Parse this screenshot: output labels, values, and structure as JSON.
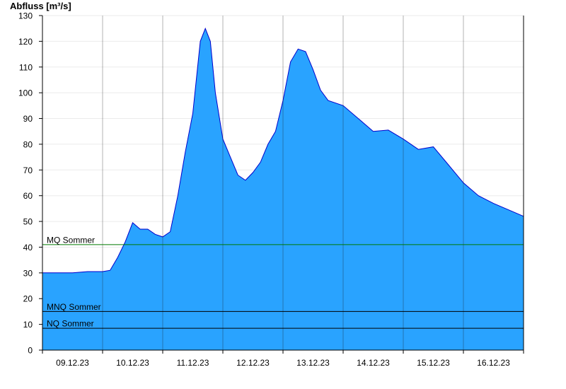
{
  "chart_data": {
    "type": "area",
    "title": "",
    "ylabel": "Abfluss [m³/s]",
    "xlabel": "",
    "ylim": [
      0,
      130
    ],
    "y_ticks": [
      0,
      10,
      20,
      30,
      40,
      50,
      60,
      70,
      80,
      90,
      100,
      110,
      120,
      130
    ],
    "x_range_days": [
      "09.12.23",
      "17.12.23"
    ],
    "x_tick_labels": [
      "09.12.23",
      "10.12.23",
      "11.12.23",
      "12.12.23",
      "13.12.23",
      "14.12.23",
      "15.12.23",
      "16.12.23"
    ],
    "grid": true,
    "colors": {
      "fill": "#29a3ff",
      "line": "#0000cc",
      "mq_line": "#007a00",
      "ref_line": "#000000"
    },
    "series": [
      {
        "name": "",
        "x": [
          "09.12.23 00:00",
          "09.12.23 06:00",
          "09.12.23 12:00",
          "09.12.23 18:00",
          "10.12.23 00:00",
          "10.12.23 03:00",
          "10.12.23 06:00",
          "10.12.23 09:00",
          "10.12.23 12:00",
          "10.12.23 15:00",
          "10.12.23 18:00",
          "10.12.23 21:00",
          "11.12.23 00:00",
          "11.12.23 03:00",
          "11.12.23 06:00",
          "11.12.23 09:00",
          "11.12.23 12:00",
          "11.12.23 15:00",
          "11.12.23 17:00",
          "11.12.23 19:00",
          "11.12.23 21:00",
          "12.12.23 00:00",
          "12.12.23 03:00",
          "12.12.23 06:00",
          "12.12.23 09:00",
          "12.12.23 12:00",
          "12.12.23 15:00",
          "12.12.23 18:00",
          "12.12.23 21:00",
          "13.12.23 00:00",
          "13.12.23 03:00",
          "13.12.23 06:00",
          "13.12.23 09:00",
          "13.12.23 12:00",
          "13.12.23 15:00",
          "13.12.23 18:00",
          "14.12.23 00:00",
          "14.12.23 06:00",
          "14.12.23 12:00",
          "14.12.23 18:00",
          "15.12.23 00:00",
          "15.12.23 06:00",
          "15.12.23 12:00",
          "15.12.23 18:00",
          "16.12.23 00:00",
          "16.12.23 06:00",
          "16.12.23 12:00",
          "16.12.23 18:00",
          "17.12.23 00:00"
        ],
        "values": [
          30,
          30,
          30,
          30.5,
          30.5,
          31,
          36,
          42,
          49.5,
          47,
          47,
          45,
          44,
          46,
          60,
          77,
          92,
          120,
          125,
          120,
          100,
          82,
          75,
          68,
          66,
          69,
          73,
          80,
          85,
          97,
          112,
          117,
          116,
          109,
          101,
          97,
          95,
          90,
          85,
          85.5,
          82,
          78,
          79,
          72,
          65,
          60,
          57,
          54.5,
          52
        ]
      }
    ],
    "reference_lines": [
      {
        "label": "MQ Sommer",
        "value": 41
      },
      {
        "label": "MNQ Sommer",
        "value": 15
      },
      {
        "label": "NQ Sommer",
        "value": 8.5
      }
    ]
  }
}
